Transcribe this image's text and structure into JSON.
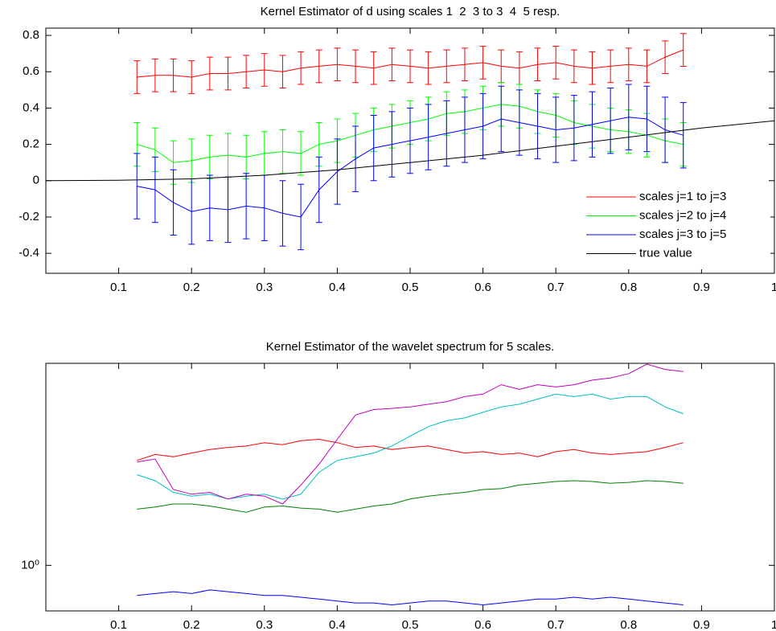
{
  "chart_data": [
    {
      "type": "line",
      "title": "Kernel Estimator of d using scales 1  2  3 to 3  4  5 resp.",
      "xlim": [
        0,
        1
      ],
      "ylim": [
        -0.51,
        0.84
      ],
      "xticks": [
        0.1,
        0.2,
        0.3,
        0.4,
        0.5,
        0.6,
        0.7,
        0.8,
        0.9,
        1
      ],
      "yticks": [
        -0.4,
        -0.2,
        0,
        0.2,
        0.4,
        0.6,
        0.8
      ],
      "legend": "lower right",
      "series": [
        {
          "name": "scales j=1 to j=3",
          "color": "#ff0000",
          "x": [
            0.125,
            0.15,
            0.175,
            0.2,
            0.225,
            0.25,
            0.275,
            0.3,
            0.325,
            0.35,
            0.375,
            0.4,
            0.425,
            0.45,
            0.475,
            0.5,
            0.525,
            0.55,
            0.575,
            0.6,
            0.625,
            0.65,
            0.675,
            0.7,
            0.725,
            0.75,
            0.775,
            0.8,
            0.825,
            0.85,
            0.875
          ],
          "values": [
            0.57,
            0.58,
            0.58,
            0.57,
            0.59,
            0.59,
            0.6,
            0.61,
            0.6,
            0.62,
            0.63,
            0.64,
            0.63,
            0.62,
            0.64,
            0.63,
            0.62,
            0.63,
            0.64,
            0.65,
            0.63,
            0.62,
            0.64,
            0.65,
            0.63,
            0.62,
            0.63,
            0.64,
            0.63,
            0.68,
            0.72
          ],
          "errors": [
            0.09,
            0.09,
            0.09,
            0.09,
            0.09,
            0.09,
            0.09,
            0.09,
            0.09,
            0.09,
            0.09,
            0.09,
            0.09,
            0.09,
            0.09,
            0.09,
            0.09,
            0.09,
            0.09,
            0.09,
            0.09,
            0.09,
            0.09,
            0.09,
            0.09,
            0.09,
            0.09,
            0.09,
            0.09,
            0.09,
            0.09
          ]
        },
        {
          "name": "scales j=2 to j=4",
          "color": "#00ff00",
          "x": [
            0.125,
            0.15,
            0.175,
            0.2,
            0.225,
            0.25,
            0.275,
            0.3,
            0.325,
            0.35,
            0.375,
            0.4,
            0.425,
            0.45,
            0.475,
            0.5,
            0.525,
            0.55,
            0.575,
            0.6,
            0.625,
            0.65,
            0.675,
            0.7,
            0.725,
            0.75,
            0.775,
            0.8,
            0.825,
            0.85,
            0.875
          ],
          "values": [
            0.2,
            0.17,
            0.1,
            0.11,
            0.13,
            0.14,
            0.13,
            0.15,
            0.16,
            0.15,
            0.2,
            0.22,
            0.25,
            0.28,
            0.3,
            0.32,
            0.34,
            0.37,
            0.38,
            0.4,
            0.42,
            0.41,
            0.38,
            0.36,
            0.32,
            0.3,
            0.28,
            0.27,
            0.25,
            0.22,
            0.2
          ],
          "errors": [
            0.12,
            0.12,
            0.12,
            0.12,
            0.12,
            0.12,
            0.12,
            0.12,
            0.12,
            0.12,
            0.12,
            0.12,
            0.12,
            0.12,
            0.12,
            0.12,
            0.12,
            0.12,
            0.12,
            0.12,
            0.12,
            0.12,
            0.12,
            0.12,
            0.12,
            0.12,
            0.12,
            0.12,
            0.12,
            0.12,
            0.12
          ]
        },
        {
          "name": "scales j=3 to j=5",
          "color": "#0000ff",
          "x": [
            0.125,
            0.15,
            0.175,
            0.2,
            0.225,
            0.25,
            0.275,
            0.3,
            0.325,
            0.35,
            0.375,
            0.4,
            0.425,
            0.45,
            0.475,
            0.5,
            0.525,
            0.55,
            0.575,
            0.6,
            0.625,
            0.65,
            0.675,
            0.7,
            0.725,
            0.75,
            0.775,
            0.8,
            0.825,
            0.85,
            0.875
          ],
          "values": [
            -0.03,
            -0.05,
            -0.12,
            -0.17,
            -0.15,
            -0.16,
            -0.14,
            -0.15,
            -0.18,
            -0.2,
            -0.05,
            0.05,
            0.12,
            0.18,
            0.2,
            0.22,
            0.24,
            0.26,
            0.28,
            0.3,
            0.34,
            0.32,
            0.3,
            0.28,
            0.29,
            0.31,
            0.33,
            0.35,
            0.34,
            0.28,
            0.25
          ],
          "errors": [
            0.18,
            0.18,
            0.18,
            0.18,
            0.18,
            0.18,
            0.18,
            0.18,
            0.18,
            0.18,
            0.18,
            0.18,
            0.18,
            0.18,
            0.18,
            0.18,
            0.18,
            0.18,
            0.18,
            0.18,
            0.18,
            0.18,
            0.18,
            0.18,
            0.18,
            0.18,
            0.18,
            0.18,
            0.18,
            0.18,
            0.18
          ]
        },
        {
          "name": "true value",
          "color": "#000000",
          "x": [
            0,
            0.1,
            0.2,
            0.3,
            0.4,
            0.5,
            0.6,
            0.7,
            0.8,
            0.9,
            1
          ],
          "values": [
            0,
            0.002,
            0.01,
            0.03,
            0.06,
            0.1,
            0.14,
            0.19,
            0.24,
            0.29,
            0.33
          ]
        }
      ]
    },
    {
      "type": "line",
      "title": "Kernel Estimator of the wavelet spectrum for 5 scales.",
      "xlim": [
        0,
        1
      ],
      "ylim": [
        0.74,
        3.8
      ],
      "log_y": true,
      "xticks": [
        0.1,
        0.2,
        0.3,
        0.4,
        0.5,
        0.6,
        0.7,
        0.8,
        0.9,
        1
      ],
      "yticks": [
        {
          "value": 1,
          "label": "10⁰"
        }
      ],
      "series": [
        {
          "color": "#ff0000",
          "x": [
            0.125,
            0.15,
            0.175,
            0.2,
            0.225,
            0.25,
            0.275,
            0.3,
            0.325,
            0.35,
            0.375,
            0.4,
            0.425,
            0.45,
            0.475,
            0.5,
            0.525,
            0.55,
            0.575,
            0.6,
            0.625,
            0.65,
            0.675,
            0.7,
            0.725,
            0.75,
            0.775,
            0.8,
            0.825,
            0.85,
            0.875
          ],
          "values": [
            2.0,
            2.08,
            2.05,
            2.1,
            2.15,
            2.18,
            2.2,
            2.25,
            2.22,
            2.28,
            2.3,
            2.25,
            2.18,
            2.2,
            2.15,
            2.18,
            2.2,
            2.15,
            2.1,
            2.12,
            2.08,
            2.1,
            2.05,
            2.12,
            2.15,
            2.1,
            2.08,
            2.1,
            2.12,
            2.18,
            2.25
          ]
        },
        {
          "color": "#008000",
          "x": [
            0.125,
            0.15,
            0.175,
            0.2,
            0.225,
            0.25,
            0.275,
            0.3,
            0.325,
            0.35,
            0.375,
            0.4,
            0.425,
            0.45,
            0.475,
            0.5,
            0.525,
            0.55,
            0.575,
            0.6,
            0.625,
            0.65,
            0.675,
            0.7,
            0.725,
            0.75,
            0.775,
            0.8,
            0.825,
            0.85,
            0.875
          ],
          "values": [
            1.45,
            1.47,
            1.5,
            1.5,
            1.48,
            1.45,
            1.42,
            1.47,
            1.48,
            1.46,
            1.45,
            1.42,
            1.45,
            1.48,
            1.5,
            1.55,
            1.58,
            1.6,
            1.62,
            1.65,
            1.66,
            1.7,
            1.72,
            1.74,
            1.75,
            1.74,
            1.72,
            1.73,
            1.75,
            1.74,
            1.72
          ]
        },
        {
          "color": "#0000ff",
          "x": [
            0.125,
            0.15,
            0.175,
            0.2,
            0.225,
            0.25,
            0.275,
            0.3,
            0.325,
            0.35,
            0.375,
            0.4,
            0.425,
            0.45,
            0.475,
            0.5,
            0.525,
            0.55,
            0.575,
            0.6,
            0.625,
            0.65,
            0.675,
            0.7,
            0.725,
            0.75,
            0.775,
            0.8,
            0.825,
            0.85,
            0.875
          ],
          "values": [
            0.82,
            0.83,
            0.84,
            0.83,
            0.85,
            0.84,
            0.83,
            0.82,
            0.82,
            0.81,
            0.8,
            0.79,
            0.78,
            0.78,
            0.77,
            0.78,
            0.79,
            0.79,
            0.78,
            0.77,
            0.78,
            0.79,
            0.8,
            0.8,
            0.81,
            0.8,
            0.81,
            0.8,
            0.79,
            0.78,
            0.77
          ]
        },
        {
          "color": "#00bfbf",
          "x": [
            0.125,
            0.15,
            0.175,
            0.2,
            0.225,
            0.25,
            0.275,
            0.3,
            0.325,
            0.35,
            0.375,
            0.4,
            0.425,
            0.45,
            0.475,
            0.5,
            0.525,
            0.55,
            0.575,
            0.6,
            0.625,
            0.65,
            0.675,
            0.7,
            0.725,
            0.75,
            0.775,
            0.8,
            0.825,
            0.85,
            0.875
          ],
          "values": [
            1.82,
            1.75,
            1.62,
            1.58,
            1.6,
            1.55,
            1.58,
            1.6,
            1.55,
            1.6,
            1.85,
            2.0,
            2.05,
            2.1,
            2.2,
            2.35,
            2.5,
            2.6,
            2.65,
            2.75,
            2.85,
            2.9,
            3.0,
            3.1,
            3.05,
            3.1,
            3.0,
            3.05,
            3.05,
            2.85,
            2.72
          ]
        },
        {
          "color": "#bf00bf",
          "x": [
            0.125,
            0.15,
            0.175,
            0.2,
            0.225,
            0.25,
            0.275,
            0.3,
            0.325,
            0.35,
            0.375,
            0.4,
            0.425,
            0.45,
            0.475,
            0.5,
            0.525,
            0.55,
            0.575,
            0.6,
            0.625,
            0.65,
            0.675,
            0.7,
            0.725,
            0.75,
            0.775,
            0.8,
            0.825,
            0.85,
            0.875
          ],
          "values": [
            1.98,
            2.02,
            1.65,
            1.6,
            1.62,
            1.55,
            1.6,
            1.58,
            1.5,
            1.7,
            1.95,
            2.3,
            2.7,
            2.8,
            2.82,
            2.85,
            2.9,
            2.95,
            3.05,
            3.1,
            3.3,
            3.2,
            3.3,
            3.25,
            3.3,
            3.4,
            3.45,
            3.55,
            3.78,
            3.65,
            3.6
          ]
        }
      ]
    }
  ]
}
